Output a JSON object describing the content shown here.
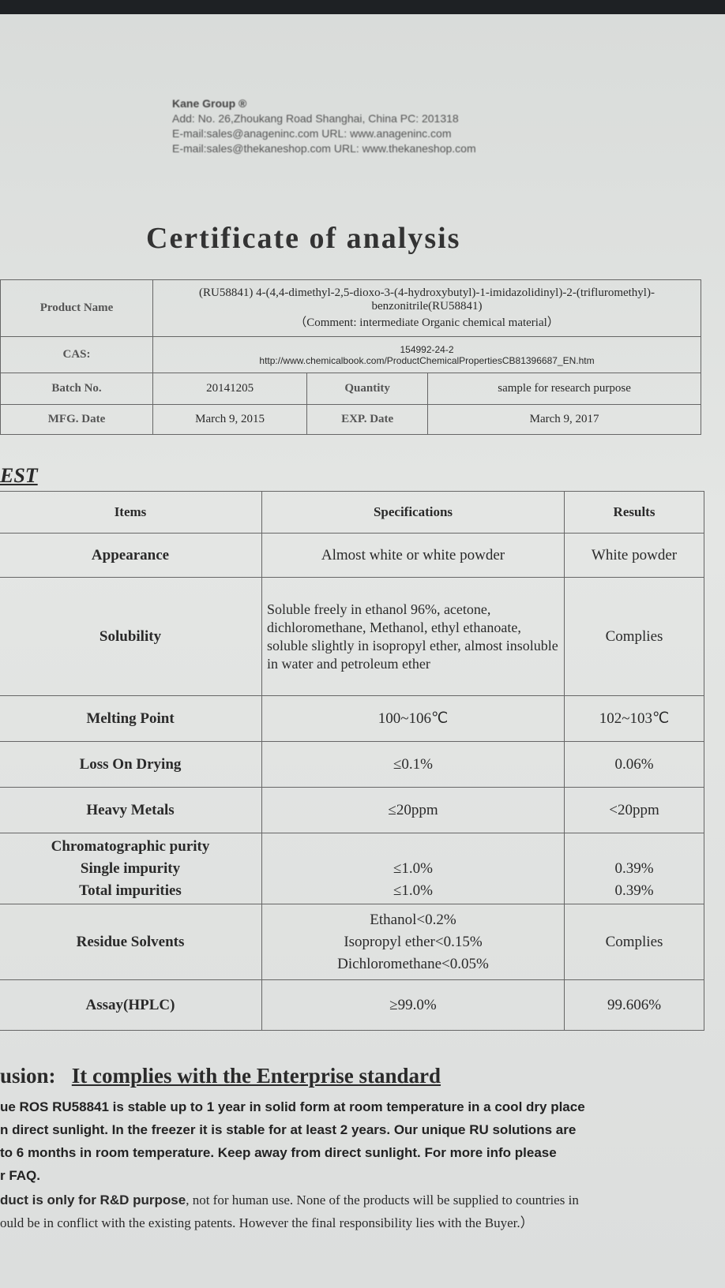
{
  "header": {
    "company": "Kane Group ®",
    "address": "Add: No. 26,Zhoukang Road Shanghai, China  PC: 201318",
    "email1": "E-mail:sales@anageninc.com  URL: www.anageninc.com",
    "email2": "E-mail:sales@thekaneshop.com  URL: www.thekaneshop.com"
  },
  "title": "Certificate of analysis",
  "info": {
    "product_label": "Product Name",
    "product_value": "(RU58841) 4-(4,4-dimethyl-2,5-dioxo-3-(4-hydroxybutyl)-1-imidazolidinyl)-2-(trifluromethyl)-benzonitrile(RU58841)",
    "product_comment": "（Comment: intermediate Organic chemical material）",
    "cas_label": "CAS:",
    "cas_value": "154992-24-2",
    "cas_url": "http://www.chemicalbook.com/ProductChemicalPropertiesCB81396687_EN.htm",
    "batch_label": "Batch No.",
    "batch_value": "20141205",
    "quantity_label": "Quantity",
    "quantity_value": "sample for research purpose",
    "mfg_label": "MFG. Date",
    "mfg_value": "March 9, 2015",
    "exp_label": "EXP. Date",
    "exp_value": "March 9, 2017"
  },
  "test_label": "EST",
  "tests": {
    "headers": [
      "Items",
      "Specifications",
      "Results"
    ],
    "rows": [
      {
        "item": "Appearance",
        "spec": "Almost white or white powder",
        "result": "White powder"
      },
      {
        "item": "Solubility",
        "spec": "Soluble freely in ethanol 96%, acetone, dichloromethane, Methanol, ethyl ethanoate, soluble slightly in isopropyl ether, almost insoluble in water and petroleum ether",
        "result": "Complies"
      },
      {
        "item": "Melting Point",
        "spec": "100~106℃",
        "result": "102~103℃"
      },
      {
        "item": "Loss On Drying",
        "spec": "≤0.1%",
        "result": "0.06%"
      },
      {
        "item": "Heavy Metals",
        "spec": "≤20ppm",
        "result": "<20ppm"
      },
      {
        "item": "Chromatographic purity",
        "spec": "",
        "result": ""
      },
      {
        "item": "Single impurity",
        "spec": "≤1.0%",
        "result": "0.39%"
      },
      {
        "item": "Total impurities",
        "spec": "≤1.0%",
        "result": "0.39%"
      },
      {
        "item": "Residue Solvents",
        "spec": "Ethanol<0.2%",
        "spec2": "Isopropyl ether<0.15%",
        "spec3": "Dichloromethane<0.05%",
        "result": "Complies"
      },
      {
        "item": "Assay(HPLC)",
        "spec": "≥99.0%",
        "result": "99.606%"
      }
    ]
  },
  "conclusion": {
    "label": "usion:",
    "text": "It complies with  the Enterprise standard"
  },
  "notes": [
    "ue ROS RU58841 is stable up to 1 year in solid form at room temperature in a cool dry place",
    "n direct sunlight. In the freezer it is stable for at least 2 years. Our unique RU solutions are",
    " to 6 months in room temperature. Keep away from direct sunlight. For more info please",
    "r FAQ."
  ],
  "disclaimer": {
    "bold": "duct is only for R&D purpose",
    "rest1": ", not for human use. None of the products will be supplied to countries in",
    "line2": "ould be in conflict with the existing patents. However the final responsibility lies with the Buyer.）"
  }
}
